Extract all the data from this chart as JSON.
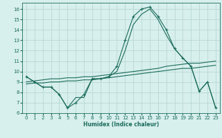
{
  "xlabel": "Humidex (Indice chaleur)",
  "bg_color": "#d7efed",
  "grid_color": "#b8d8d4",
  "line_color": "#1a6b5a",
  "xlim": [
    -0.5,
    23.5
  ],
  "ylim": [
    6,
    16.6
  ],
  "xticks": [
    0,
    1,
    2,
    3,
    4,
    5,
    6,
    7,
    8,
    9,
    10,
    11,
    12,
    13,
    14,
    15,
    16,
    17,
    18,
    19,
    20,
    21,
    22,
    23
  ],
  "yticks": [
    6,
    7,
    8,
    9,
    10,
    11,
    12,
    13,
    14,
    15,
    16
  ],
  "series": [
    {
      "x": [
        0,
        1,
        2,
        3,
        4,
        5,
        6,
        7,
        8,
        9,
        10,
        11,
        12,
        13,
        14,
        15,
        16,
        17,
        18,
        19,
        20,
        21,
        22,
        23
      ],
      "y": [
        9.5,
        9.0,
        8.5,
        8.5,
        7.8,
        6.5,
        7.0,
        7.8,
        9.3,
        9.3,
        9.5,
        10.5,
        13.0,
        15.3,
        16.0,
        16.2,
        15.3,
        14.0,
        12.2,
        11.3,
        10.5,
        8.1,
        9.0,
        6.5
      ],
      "marker": "+"
    },
    {
      "x": [
        0,
        1,
        2,
        3,
        4,
        5,
        6,
        7,
        8,
        9,
        10,
        11,
        12,
        13,
        14,
        15,
        16,
        17,
        18,
        19,
        20,
        21,
        22,
        23
      ],
      "y": [
        9.5,
        9.0,
        8.5,
        8.5,
        7.8,
        6.5,
        7.5,
        7.5,
        9.3,
        9.3,
        9.5,
        10.0,
        12.0,
        14.5,
        15.5,
        16.0,
        15.0,
        13.5,
        12.2,
        11.3,
        10.5,
        8.1,
        9.0,
        6.5
      ],
      "marker": null
    },
    {
      "x": [
        0,
        1,
        2,
        3,
        4,
        5,
        6,
        7,
        8,
        9,
        10,
        11,
        12,
        13,
        14,
        15,
        16,
        17,
        18,
        19,
        20,
        21,
        22,
        23
      ],
      "y": [
        9.0,
        9.1,
        9.2,
        9.3,
        9.3,
        9.4,
        9.4,
        9.5,
        9.5,
        9.6,
        9.7,
        9.8,
        9.9,
        10.0,
        10.1,
        10.2,
        10.3,
        10.5,
        10.6,
        10.7,
        10.8,
        10.8,
        10.9,
        11.0
      ],
      "marker": null
    },
    {
      "x": [
        0,
        1,
        2,
        3,
        4,
        5,
        6,
        7,
        8,
        9,
        10,
        11,
        12,
        13,
        14,
        15,
        16,
        17,
        18,
        19,
        20,
        21,
        22,
        23
      ],
      "y": [
        8.8,
        8.9,
        8.9,
        9.0,
        9.0,
        9.1,
        9.1,
        9.2,
        9.2,
        9.3,
        9.4,
        9.5,
        9.6,
        9.7,
        9.8,
        9.9,
        10.0,
        10.1,
        10.2,
        10.3,
        10.3,
        10.4,
        10.5,
        10.6
      ],
      "marker": null
    }
  ]
}
